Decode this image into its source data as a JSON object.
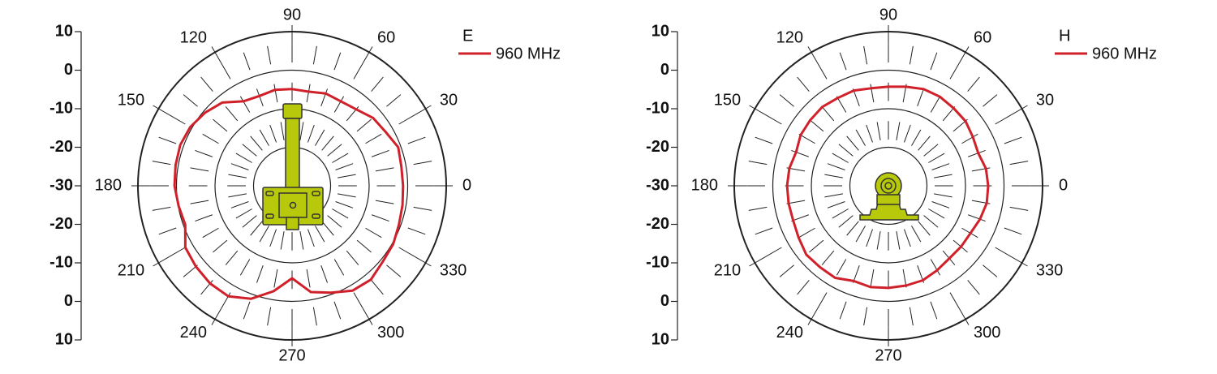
{
  "chart_data": [
    {
      "type": "polar",
      "title": "E",
      "x": [
        0,
        10,
        20,
        30,
        40,
        50,
        60,
        70,
        80,
        90,
        100,
        110,
        120,
        130,
        140,
        150,
        160,
        170,
        180,
        190,
        200,
        210,
        220,
        230,
        240,
        250,
        260,
        270,
        280,
        290,
        300,
        310,
        320,
        330,
        340,
        350
      ],
      "series": [
        {
          "name": "960 MHz",
          "color": "#d0202a",
          "values": [
            -1.2,
            -1.2,
            -0.7,
            -2.0,
            -2.6,
            -4.1,
            -4.7,
            -4.5,
            -5.2,
            -4.9,
            -4.7,
            -5.2,
            -4.7,
            -1.8,
            -0.5,
            0.5,
            0.9,
            0.7,
            0.5,
            -0.1,
            -0.5,
            2.0,
            2.6,
            3.1,
            3.1,
            1.2,
            -2.2,
            -6.0,
            -2.0,
            -0.5,
            1.4,
            1.8,
            0.7,
            0.3,
            -0.5,
            -0.9
          ]
        }
      ],
      "xticks": [
        0,
        30,
        60,
        90,
        120,
        150,
        180,
        210,
        240,
        270,
        300,
        330
      ],
      "rlim": [
        -30,
        10
      ],
      "rticks": [
        -30,
        -20,
        -10,
        0,
        10
      ]
    },
    {
      "type": "polar",
      "title": "H",
      "x": [
        0,
        10,
        20,
        30,
        40,
        50,
        60,
        70,
        80,
        90,
        100,
        110,
        120,
        130,
        140,
        150,
        160,
        170,
        180,
        190,
        200,
        210,
        220,
        230,
        240,
        250,
        260,
        270,
        280,
        290,
        300,
        310,
        320,
        330,
        340,
        350
      ],
      "series": [
        {
          "name": "960 MHz",
          "color": "#d0202a",
          "values": [
            -4.1,
            -4.3,
            -5.2,
            -4.7,
            -3.9,
            -3.7,
            -3.3,
            -3.3,
            -3.9,
            -4.3,
            -4.3,
            -3.7,
            -3.7,
            -3.3,
            -3.5,
            -3.7,
            -4.5,
            -3.9,
            -3.7,
            -3.7,
            -3.7,
            -3.1,
            -2.2,
            -2.4,
            -2.4,
            -3.7,
            -3.3,
            -3.5,
            -3.7,
            -3.9,
            -4.7,
            -5.4,
            -5.4,
            -5.4,
            -4.7,
            -4.1
          ]
        }
      ],
      "xticks": [
        0,
        30,
        60,
        90,
        120,
        150,
        180,
        210,
        240,
        270,
        300,
        330
      ],
      "rlim": [
        -30,
        10
      ],
      "rticks": [
        -30,
        -20,
        -10,
        0,
        10
      ]
    }
  ]
}
